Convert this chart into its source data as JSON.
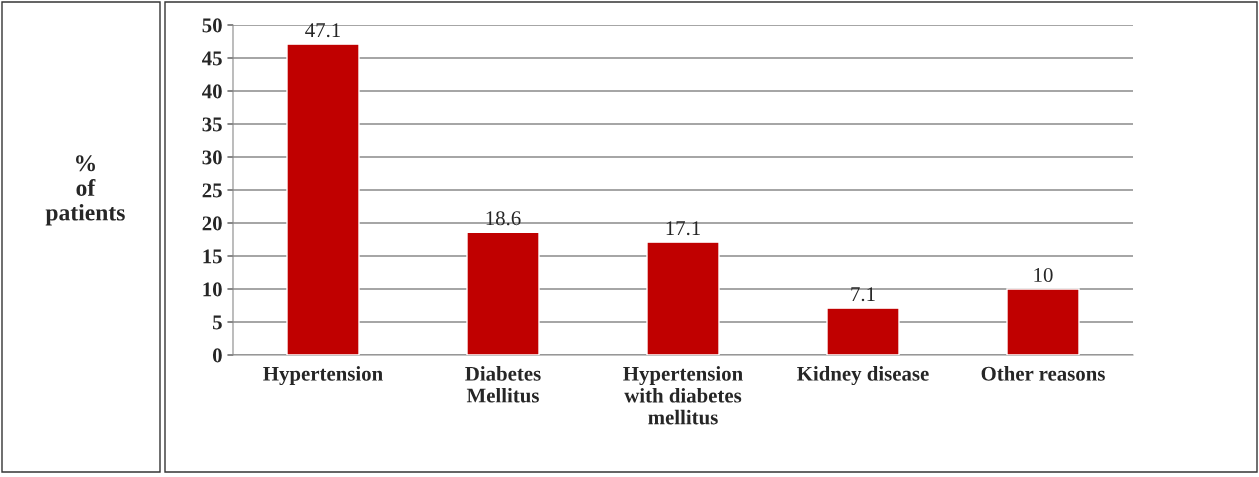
{
  "chart_data": {
    "type": "bar",
    "ylabel": "%\nof\npatients",
    "categories": [
      "Hypertension",
      "Diabetes\nMellitus",
      "Hypertension\nwith diabetes\nmellitus",
      "Kidney disease",
      "Other reasons"
    ],
    "values": [
      47.1,
      18.6,
      17.1,
      7.1,
      10
    ],
    "color": "#c00000",
    "ylim": [
      0,
      50
    ],
    "yticks": [
      0,
      5,
      10,
      15,
      20,
      25,
      30,
      35,
      40,
      45,
      50
    ],
    "grid": "y",
    "data_labels": true
  }
}
